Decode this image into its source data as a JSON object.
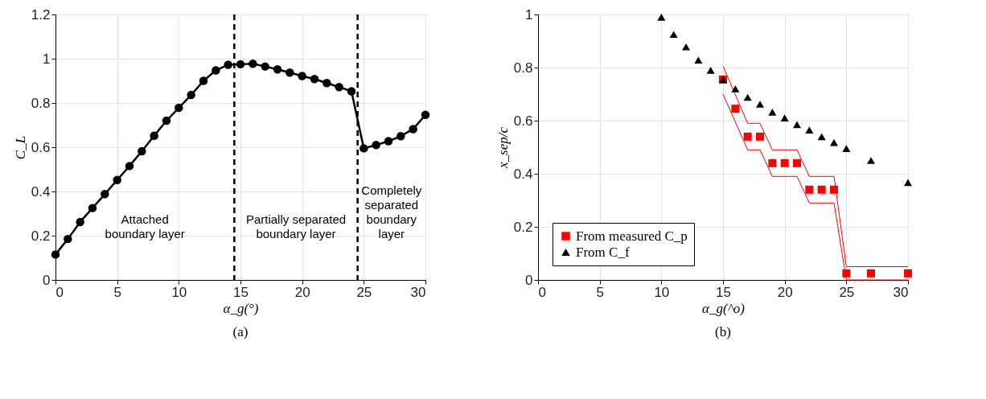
{
  "chart_data": [
    {
      "type": "line",
      "title": "(a)",
      "xlabel": "α_g(°)",
      "ylabel": "C_L",
      "xlim": [
        0,
        30
      ],
      "xticks": [
        0,
        5,
        10,
        15,
        20,
        25,
        30
      ],
      "ylim": [
        0,
        1.2
      ],
      "yticks": [
        0,
        0.2,
        0.4,
        0.6,
        0.8,
        1,
        1.2
      ],
      "grid": true,
      "marker": "circle",
      "line_style": "solid",
      "series": [
        {
          "color": "#000000",
          "x": [
            0,
            1,
            2,
            3,
            4,
            5,
            6,
            7,
            8,
            9,
            10,
            11,
            12,
            13,
            14,
            15,
            16,
            17,
            18,
            19,
            20,
            21,
            22,
            23,
            24,
            25,
            26,
            27,
            28,
            29,
            30
          ],
          "values": [
            0.115,
            0.185,
            0.262,
            0.325,
            0.388,
            0.452,
            0.515,
            0.582,
            0.652,
            0.72,
            0.778,
            0.836,
            0.9,
            0.947,
            0.973,
            0.975,
            0.977,
            0.965,
            0.952,
            0.937,
            0.922,
            0.908,
            0.89,
            0.872,
            0.853,
            0.595,
            0.61,
            0.627,
            0.65,
            0.682,
            0.746
          ]
        }
      ],
      "ref_lines": [
        {
          "axis": "x",
          "value": 14.5,
          "color": "#000000",
          "line_style": "dashed"
        },
        {
          "axis": "x",
          "value": 24.5,
          "color": "#000000",
          "line_style": "dashed"
        }
      ],
      "annotations": [
        "Attached\nboundary layer",
        "Partially separated\nboundary layer",
        "Completely\nseparated\nboundary\nlayer"
      ]
    },
    {
      "type": "scatter",
      "title": "(b)",
      "xlabel": "α_g(^o)",
      "ylabel": "x_sep/c",
      "xlim": [
        0,
        30
      ],
      "xticks": [
        0,
        5,
        10,
        15,
        20,
        25,
        30
      ],
      "ylim": [
        0,
        1
      ],
      "yticks": [
        0,
        0.2,
        0.4,
        0.6,
        0.8,
        1
      ],
      "grid": true,
      "legend": "bottom left",
      "series": [
        {
          "type": "line",
          "color": "#ff0000",
          "marker": "none",
          "x": [
            15,
            17,
            18,
            19,
            21,
            22,
            24,
            25,
            30
          ],
          "values": [
            0.805,
            0.59,
            0.59,
            0.49,
            0.49,
            0.39,
            0.39,
            0.05,
            0.05
          ]
        },
        {
          "type": "line",
          "color": "#ff0000",
          "marker": "none",
          "x": [
            15,
            17,
            18,
            19,
            21,
            22,
            24,
            25,
            30
          ],
          "values": [
            0.7,
            0.49,
            0.49,
            0.39,
            0.39,
            0.29,
            0.29,
            0.0,
            0.0
          ]
        },
        {
          "type": "scatter",
          "name": "From measured C_p",
          "color": "#ff0000",
          "marker": "square",
          "x": [
            15,
            16,
            17,
            18,
            19,
            20,
            21,
            22,
            23,
            24,
            25,
            27,
            30
          ],
          "values": [
            0.755,
            0.645,
            0.54,
            0.54,
            0.44,
            0.44,
            0.44,
            0.34,
            0.34,
            0.34,
            0.025,
            0.025,
            0.025
          ]
        },
        {
          "type": "scatter",
          "name": "From C_f",
          "color": "#000000",
          "marker": "triangle",
          "x": [
            10,
            11,
            12,
            13,
            14,
            15,
            16,
            17,
            18,
            19,
            20,
            21,
            22,
            23,
            24,
            25,
            27,
            30
          ],
          "values": [
            0.99,
            0.925,
            0.878,
            0.828,
            0.79,
            0.755,
            0.72,
            0.688,
            0.662,
            0.632,
            0.61,
            0.585,
            0.565,
            0.54,
            0.518,
            0.495,
            0.45,
            0.367
          ]
        }
      ]
    }
  ]
}
